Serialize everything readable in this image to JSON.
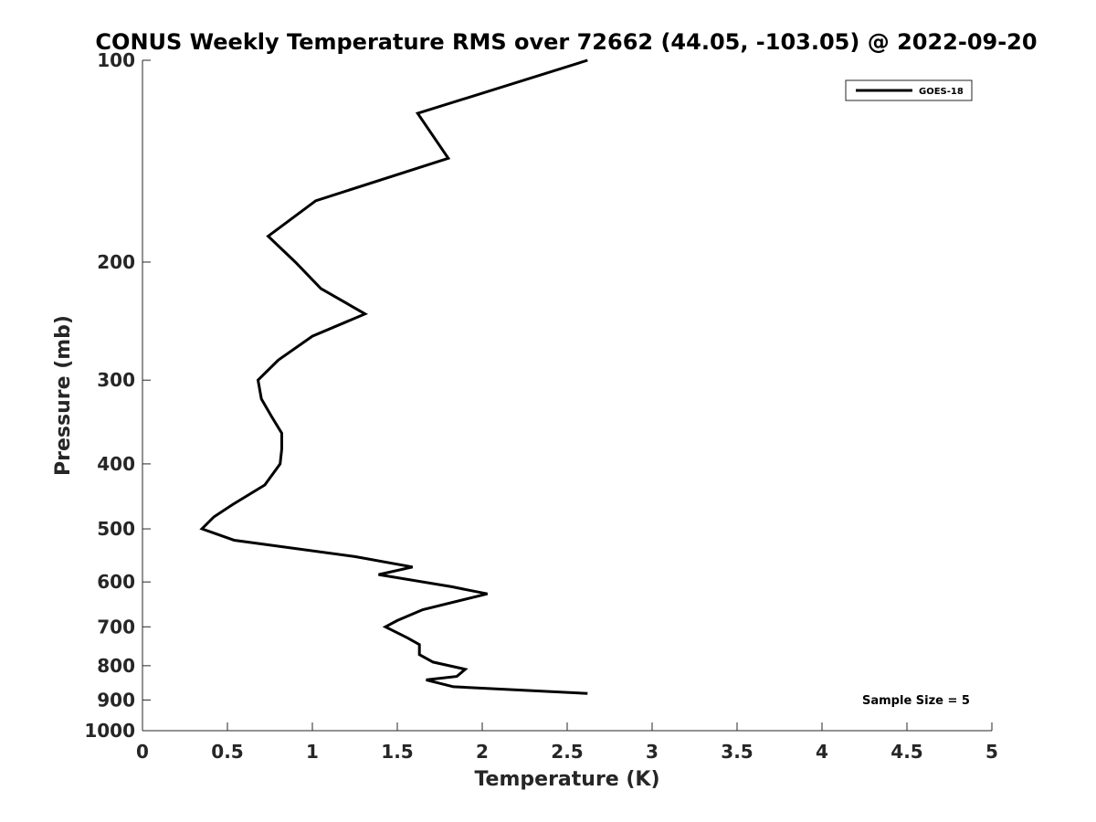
{
  "chart_data": {
    "type": "line",
    "title": "CONUS Weekly Temperature RMS over 72662 (44.05, -103.05) @ 2022-09-20",
    "xlabel": "Temperature (K)",
    "ylabel": "Pressure (mb)",
    "xlim": [
      0,
      5
    ],
    "ylim": [
      100,
      1000
    ],
    "yscale": "log",
    "y_reversed": true,
    "grid": false,
    "legend_position": "top-right",
    "x_ticks": [
      "0",
      "0.5",
      "1",
      "1.5",
      "2",
      "2.5",
      "3",
      "3.5",
      "4",
      "4.5",
      "5"
    ],
    "y_ticks": [
      "100",
      "200",
      "300",
      "400",
      "500",
      "600",
      "700",
      "800",
      "900",
      "1000"
    ],
    "series": [
      {
        "name": "GOES-18",
        "color": "#000000",
        "points": [
          [
            2.62,
            100
          ],
          [
            1.62,
            120
          ],
          [
            1.8,
            140
          ],
          [
            1.02,
            162
          ],
          [
            0.74,
            183
          ],
          [
            0.9,
            200
          ],
          [
            1.05,
            219
          ],
          [
            1.31,
            239
          ],
          [
            1.0,
            258
          ],
          [
            0.8,
            280
          ],
          [
            0.68,
            300
          ],
          [
            0.7,
            320
          ],
          [
            0.76,
            340
          ],
          [
            0.82,
            360
          ],
          [
            0.82,
            380
          ],
          [
            0.81,
            400
          ],
          [
            0.72,
            430
          ],
          [
            0.53,
            460
          ],
          [
            0.42,
            480
          ],
          [
            0.35,
            500
          ],
          [
            0.54,
            520
          ],
          [
            1.25,
            550
          ],
          [
            1.59,
            570
          ],
          [
            1.39,
            585
          ],
          [
            1.82,
            610
          ],
          [
            2.03,
            625
          ],
          [
            1.65,
            660
          ],
          [
            1.5,
            685
          ],
          [
            1.43,
            700
          ],
          [
            1.56,
            727
          ],
          [
            1.63,
            744
          ],
          [
            1.63,
            770
          ],
          [
            1.71,
            790
          ],
          [
            1.9,
            810
          ],
          [
            1.85,
            830
          ],
          [
            1.67,
            840
          ],
          [
            1.83,
            860
          ],
          [
            2.62,
            880
          ]
        ]
      }
    ],
    "annotations": [
      "Sample Size = 5"
    ]
  }
}
